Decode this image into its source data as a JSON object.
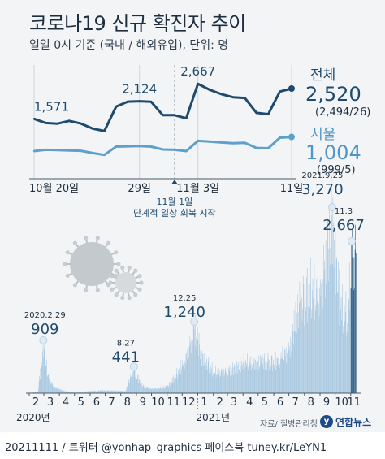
{
  "header": {
    "title": "코로나19 신규 확진자 추이",
    "subtitle": "일일 0시 기준 (국내 / 해외유입), 단위: 명"
  },
  "footer": {
    "text": "20211111  / 트위터 @yonhap_graphics  페이스북 tuney.kr/LeYN1",
    "source": "자료/ 질병관리청",
    "logo_text": "연합뉴스",
    "logo_mark": "y"
  },
  "colors": {
    "background": "#f2f4f6",
    "total_line": "#1e4a6e",
    "seoul_line": "#5ea0cc",
    "bars": "#a9c8e0",
    "bars_recent": "#2f5f86",
    "label_total": "#1e4a6e",
    "label_seoul": "#4f95c8"
  },
  "chart_data": [
    {
      "type": "line",
      "title": "",
      "x": [
        "10/20",
        "10/21",
        "10/22",
        "10/23",
        "10/24",
        "10/25",
        "10/26",
        "10/27",
        "10/28",
        "10/29",
        "10/30",
        "10/31",
        "11/1",
        "11/2",
        "11/3",
        "11/4",
        "11/5",
        "11/6",
        "11/7",
        "11/8",
        "11/9",
        "11/10",
        "11/11"
      ],
      "x_tick_labels": [
        {
          "x": "10/20",
          "label": "10월 20일"
        },
        {
          "x": "10/29",
          "label": "29일"
        },
        {
          "x": "11/3",
          "label": "11월 3일"
        },
        {
          "x": "11/11",
          "label": "11일"
        }
      ],
      "series": [
        {
          "name": "전체",
          "values": [
            1571,
            1440,
            1420,
            1508,
            1422,
            1266,
            1190,
            1952,
            2111,
            2124,
            2104,
            1685,
            1686,
            1589,
            2667,
            2482,
            2344,
            2247,
            2224,
            1758,
            1715,
            2425,
            2520
          ],
          "latest_value": "2,520",
          "latest_breakdown": "(2,494/26)",
          "labels": [
            {
              "x": "10/20",
              "text": "1,571"
            },
            {
              "x": "10/29",
              "text": "2,124"
            },
            {
              "x": "11/3",
              "text": "2,667"
            }
          ]
        },
        {
          "name": "서울",
          "values": [
            560,
            600,
            590,
            580,
            570,
            500,
            440,
            700,
            710,
            720,
            700,
            610,
            600,
            560,
            880,
            860,
            830,
            810,
            820,
            660,
            650,
            980,
            1004
          ],
          "latest_value": "1,004",
          "latest_breakdown": "(999/5)"
        }
      ],
      "annotations": [
        {
          "x": "11/1",
          "text": "11월 1일",
          "subtext": "단계적 일상 회복 시작"
        }
      ],
      "ylim": [
        0,
        2800
      ]
    },
    {
      "type": "bar",
      "title": "",
      "x_ticks": [
        "2",
        "3",
        "4",
        "5",
        "6",
        "7",
        "8",
        "9",
        "10",
        "11",
        "12",
        "1",
        "2",
        "3",
        "4",
        "5",
        "6",
        "7",
        "8",
        "9",
        "10",
        "11"
      ],
      "year_labels": [
        {
          "label": "2020년",
          "at_tick": 0
        },
        {
          "label": "2021년",
          "at_tick": 11
        }
      ],
      "period": {
        "start": "2020-02-01",
        "end": "2021-11-11"
      },
      "annotations": [
        {
          "date": "2020-02-29",
          "date_label": "2020.2.29",
          "value": 909,
          "value_label": "909"
        },
        {
          "date": "2020-08-27",
          "date_label": "8.27",
          "value": 441,
          "value_label": "441"
        },
        {
          "date": "2020-12-25",
          "date_label": "12.25",
          "value": 1240,
          "value_label": "1,240"
        },
        {
          "date": "2021-09-25",
          "date_label": "2021.9.25",
          "value": 3270,
          "value_label": "3,270"
        },
        {
          "date": "2021-11-03",
          "date_label": "11.3",
          "value": 2667,
          "value_label": "2,667"
        }
      ],
      "trend_knots": [
        [
          "2020-02-01",
          2
        ],
        [
          "2020-02-18",
          30
        ],
        [
          "2020-02-29",
          909
        ],
        [
          "2020-03-08",
          350
        ],
        [
          "2020-03-20",
          120
        ],
        [
          "2020-04-10",
          40
        ],
        [
          "2020-05-01",
          10
        ],
        [
          "2020-06-01",
          40
        ],
        [
          "2020-07-01",
          50
        ],
        [
          "2020-08-10",
          40
        ],
        [
          "2020-08-20",
          300
        ],
        [
          "2020-08-27",
          441
        ],
        [
          "2020-09-10",
          150
        ],
        [
          "2020-10-01",
          80
        ],
        [
          "2020-11-01",
          120
        ],
        [
          "2020-11-20",
          350
        ],
        [
          "2020-12-10",
          700
        ],
        [
          "2020-12-25",
          1240
        ],
        [
          "2021-01-10",
          650
        ],
        [
          "2021-02-01",
          400
        ],
        [
          "2021-03-01",
          400
        ],
        [
          "2021-04-01",
          550
        ],
        [
          "2021-05-01",
          600
        ],
        [
          "2021-06-01",
          550
        ],
        [
          "2021-07-01",
          800
        ],
        [
          "2021-07-15",
          1500
        ],
        [
          "2021-08-15",
          1900
        ],
        [
          "2021-09-01",
          1800
        ],
        [
          "2021-09-25",
          3270
        ],
        [
          "2021-10-10",
          1600
        ],
        [
          "2021-10-25",
          1400
        ],
        [
          "2021-11-03",
          2667
        ],
        [
          "2021-11-11",
          2520
        ]
      ],
      "ylim": [
        0,
        3400
      ]
    }
  ]
}
